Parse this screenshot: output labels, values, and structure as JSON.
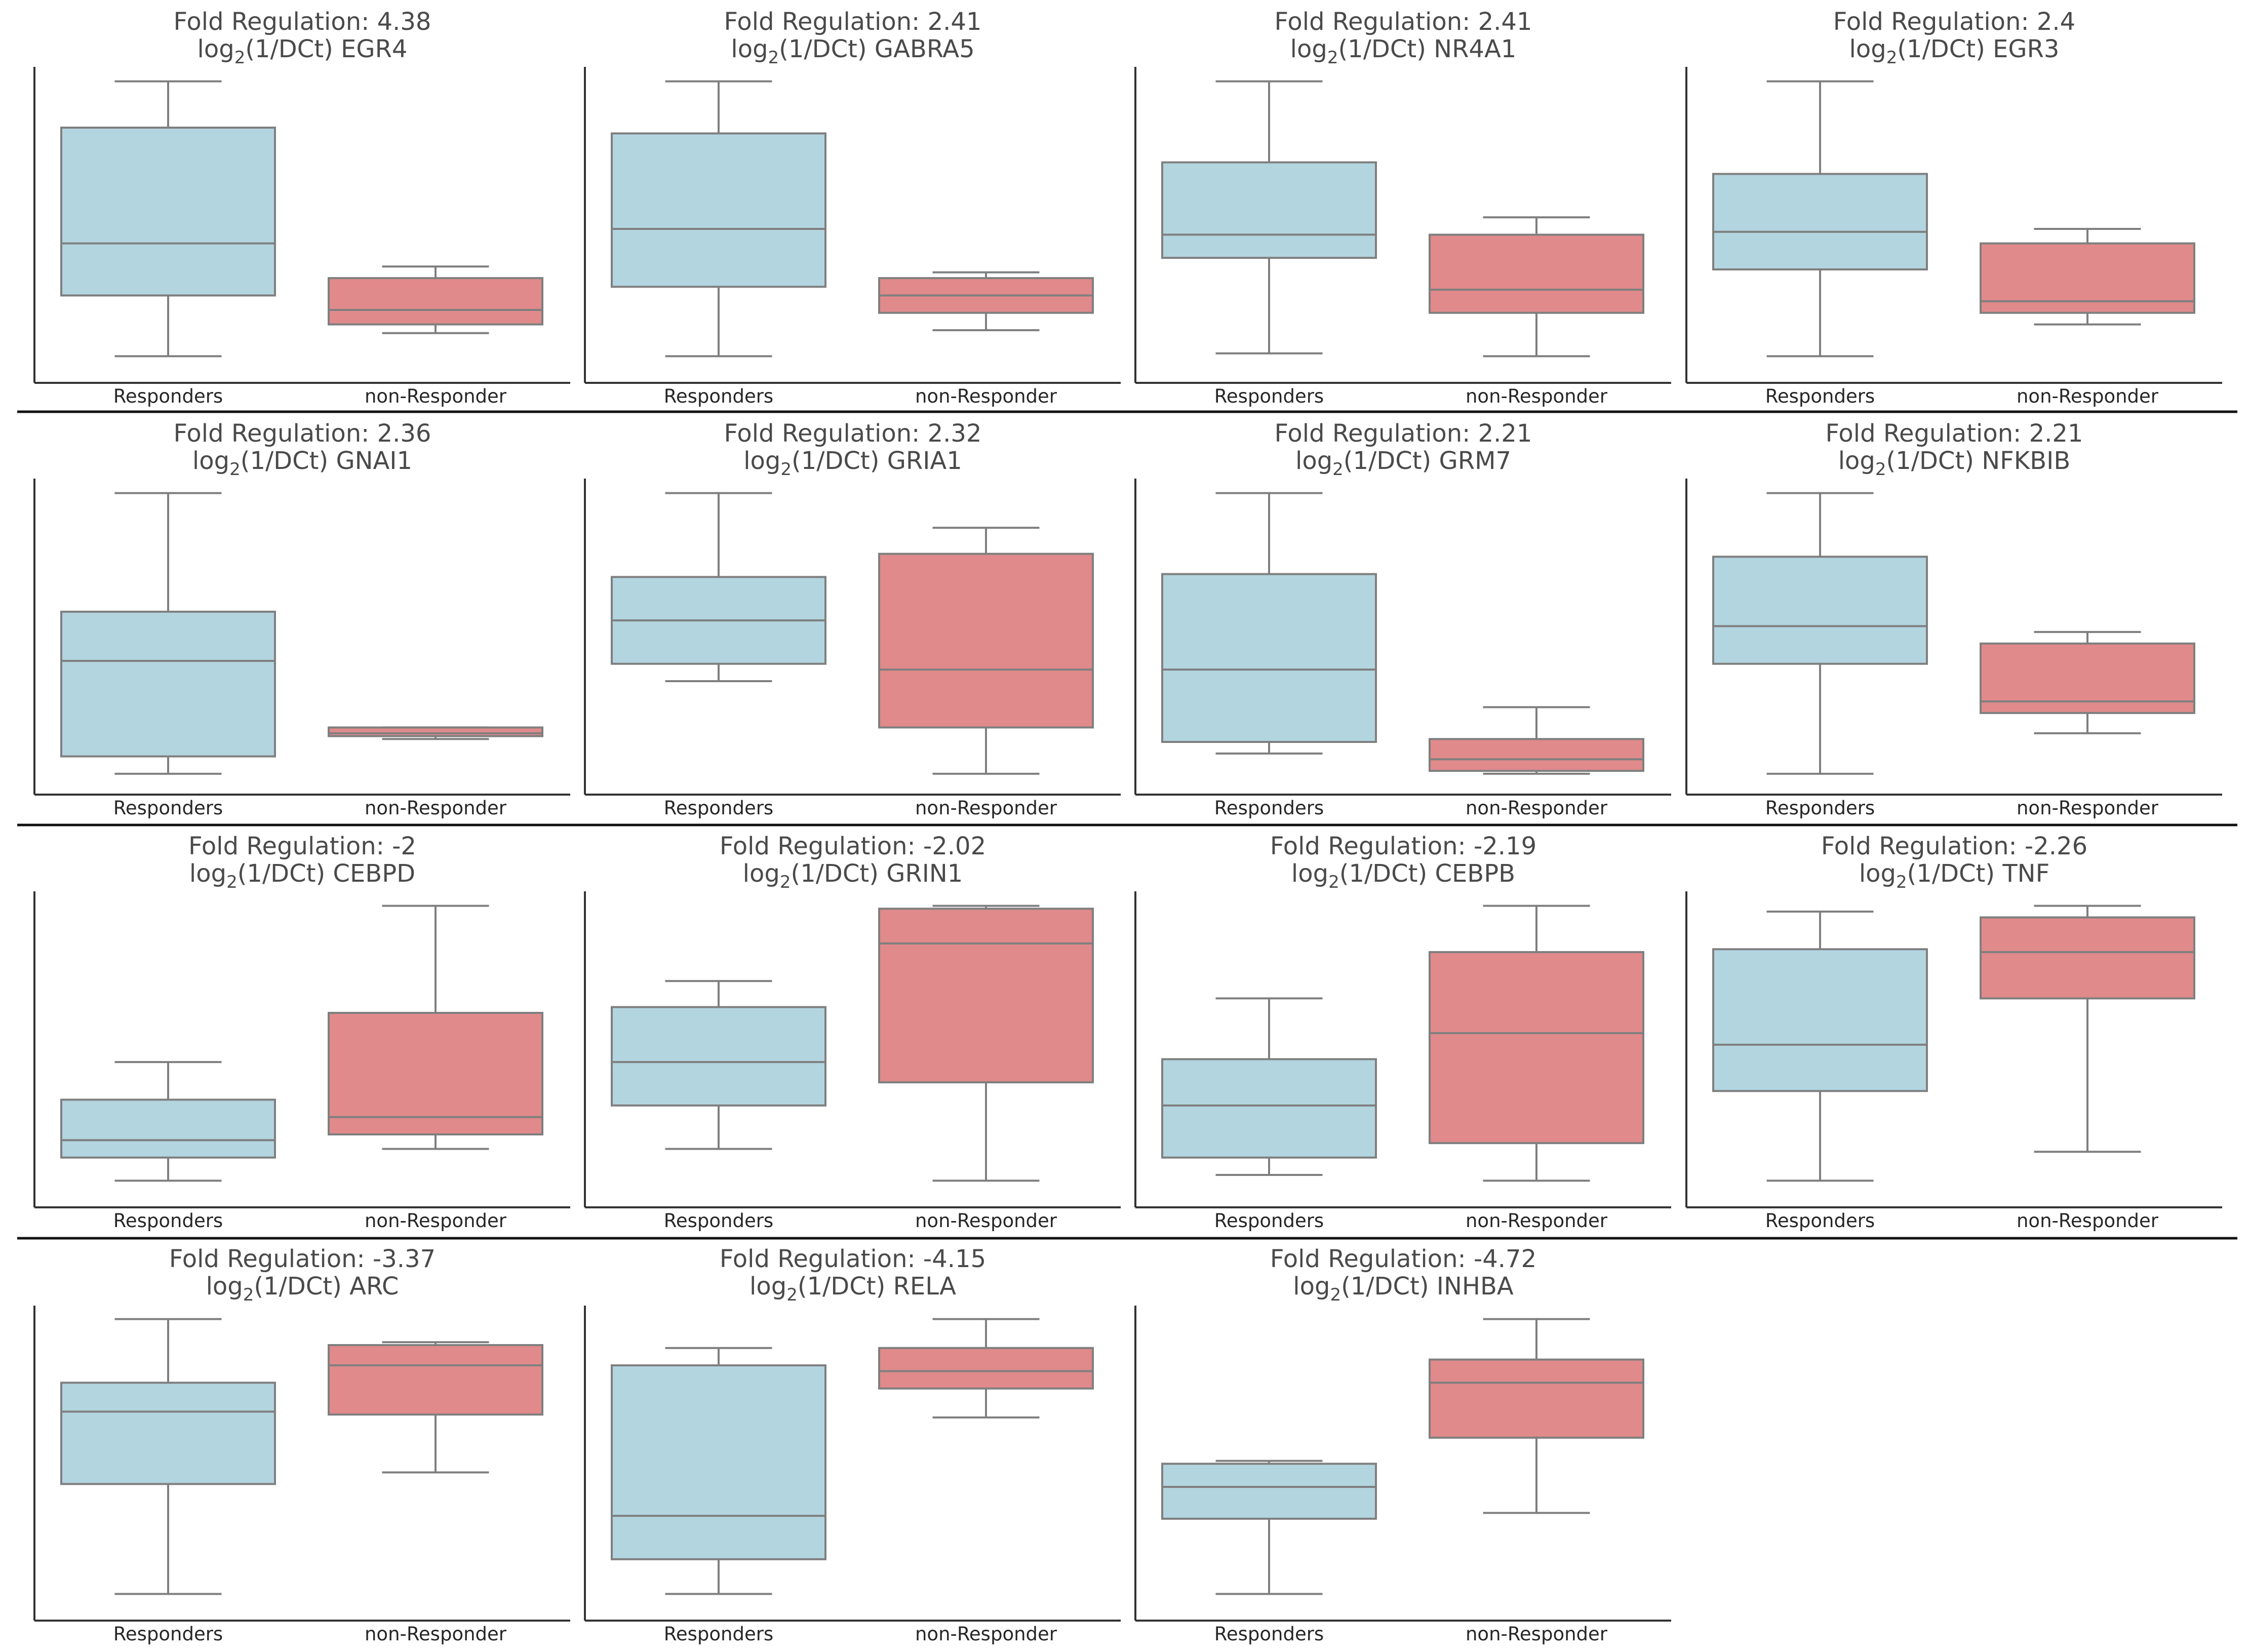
{
  "colors": {
    "responders": "#b3d5e0",
    "non_responder": "#e08a8b",
    "line": "#7f7f7f",
    "axis": "#333333",
    "separator": "#111111"
  },
  "chart_data": [
    {
      "type": "box",
      "title": "Fold Regulation: 4.38",
      "gene": "EGR4",
      "ylabel_prefix": "log",
      "ylabel_sub": "2",
      "ylabel_suffix": "(1/DCt)",
      "categories": [
        "Responders",
        "non-Responder"
      ],
      "boxes": [
        {
          "whislo": 0.05,
          "q1": 0.26,
          "med": 0.44,
          "q3": 0.84,
          "whishi": 1.0
        },
        {
          "whislo": 0.13,
          "q1": 0.16,
          "med": 0.21,
          "q3": 0.32,
          "whishi": 0.36
        }
      ],
      "ylim": [
        0,
        1.05
      ]
    },
    {
      "type": "box",
      "title": "Fold Regulation: 2.41",
      "gene": "GABRA5",
      "ylabel_prefix": "log",
      "ylabel_sub": "2",
      "ylabel_suffix": "(1/DCt)",
      "categories": [
        "Responders",
        "non-Responder"
      ],
      "boxes": [
        {
          "whislo": 0.05,
          "q1": 0.29,
          "med": 0.49,
          "q3": 0.82,
          "whishi": 1.0
        },
        {
          "whislo": 0.14,
          "q1": 0.2,
          "med": 0.26,
          "q3": 0.32,
          "whishi": 0.34
        }
      ],
      "ylim": [
        0,
        1.05
      ]
    },
    {
      "type": "box",
      "title": "Fold Regulation: 2.41",
      "gene": "NR4A1",
      "ylabel_prefix": "log",
      "ylabel_sub": "2",
      "ylabel_suffix": "(1/DCt)",
      "categories": [
        "Responders",
        "non-Responder"
      ],
      "boxes": [
        {
          "whislo": 0.06,
          "q1": 0.39,
          "med": 0.47,
          "q3": 0.72,
          "whishi": 1.0
        },
        {
          "whislo": 0.05,
          "q1": 0.2,
          "med": 0.28,
          "q3": 0.47,
          "whishi": 0.53
        }
      ],
      "ylim": [
        0,
        1.05
      ]
    },
    {
      "type": "box",
      "title": "Fold Regulation: 2.4",
      "gene": "EGR3",
      "ylabel_prefix": "log",
      "ylabel_sub": "2",
      "ylabel_suffix": "(1/DCt)",
      "categories": [
        "Responders",
        "non-Responder"
      ],
      "boxes": [
        {
          "whislo": 0.05,
          "q1": 0.35,
          "med": 0.48,
          "q3": 0.68,
          "whishi": 1.0
        },
        {
          "whislo": 0.16,
          "q1": 0.2,
          "med": 0.24,
          "q3": 0.44,
          "whishi": 0.49
        }
      ],
      "ylim": [
        0,
        1.05
      ]
    },
    {
      "type": "box",
      "title": "Fold Regulation: 2.36",
      "gene": "GNAI1",
      "ylabel_prefix": "log",
      "ylabel_sub": "2",
      "ylabel_suffix": "(1/DCt)",
      "categories": [
        "Responders",
        "non-Responder"
      ],
      "boxes": [
        {
          "whislo": 0.03,
          "q1": 0.09,
          "med": 0.42,
          "q3": 0.59,
          "whishi": 1.0
        },
        {
          "whislo": 0.15,
          "q1": 0.16,
          "med": 0.17,
          "q3": 0.19,
          "whishi": 0.19
        }
      ],
      "ylim": [
        0,
        1.05
      ]
    },
    {
      "type": "box",
      "title": "Fold Regulation: 2.32",
      "gene": "GRIA1",
      "ylabel_prefix": "log",
      "ylabel_sub": "2",
      "ylabel_suffix": "(1/DCt)",
      "categories": [
        "Responders",
        "non-Responder"
      ],
      "boxes": [
        {
          "whislo": 0.35,
          "q1": 0.41,
          "med": 0.56,
          "q3": 0.71,
          "whishi": 1.0
        },
        {
          "whislo": 0.03,
          "q1": 0.19,
          "med": 0.39,
          "q3": 0.79,
          "whishi": 0.88
        }
      ],
      "ylim": [
        0,
        1.05
      ]
    },
    {
      "type": "box",
      "title": "Fold Regulation: 2.21",
      "gene": "GRM7",
      "ylabel_prefix": "log",
      "ylabel_sub": "2",
      "ylabel_suffix": "(1/DCt)",
      "categories": [
        "Responders",
        "non-Responder"
      ],
      "boxes": [
        {
          "whislo": 0.1,
          "q1": 0.14,
          "med": 0.39,
          "q3": 0.72,
          "whishi": 1.0
        },
        {
          "whislo": 0.03,
          "q1": 0.04,
          "med": 0.08,
          "q3": 0.15,
          "whishi": 0.26
        }
      ],
      "ylim": [
        0,
        1.05
      ]
    },
    {
      "type": "box",
      "title": "Fold Regulation: 2.21",
      "gene": "NFKBIB",
      "ylabel_prefix": "log",
      "ylabel_sub": "2",
      "ylabel_suffix": "(1/DCt)",
      "categories": [
        "Responders",
        "non-Responder"
      ],
      "boxes": [
        {
          "whislo": 0.03,
          "q1": 0.41,
          "med": 0.54,
          "q3": 0.78,
          "whishi": 1.0
        },
        {
          "whislo": 0.17,
          "q1": 0.24,
          "med": 0.28,
          "q3": 0.48,
          "whishi": 0.52
        }
      ],
      "ylim": [
        0,
        1.05
      ]
    },
    {
      "type": "box",
      "title": "Fold Regulation: -2",
      "gene": "CEBPD",
      "ylabel_prefix": "log",
      "ylabel_sub": "2",
      "ylabel_suffix": "(1/DCt)",
      "categories": [
        "Responders",
        "non-Responder"
      ],
      "boxes": [
        {
          "whislo": 0.05,
          "q1": 0.13,
          "med": 0.19,
          "q3": 0.33,
          "whishi": 0.46
        },
        {
          "whislo": 0.16,
          "q1": 0.21,
          "med": 0.27,
          "q3": 0.63,
          "whishi": 1.0
        }
      ],
      "ylim": [
        0,
        1.05
      ]
    },
    {
      "type": "box",
      "title": "Fold Regulation: -2.02",
      "gene": "GRIN1",
      "ylabel_prefix": "log",
      "ylabel_sub": "2",
      "ylabel_suffix": "(1/DCt)",
      "categories": [
        "Responders",
        "non-Responder"
      ],
      "boxes": [
        {
          "whislo": 0.16,
          "q1": 0.31,
          "med": 0.46,
          "q3": 0.65,
          "whishi": 0.74
        },
        {
          "whislo": 0.05,
          "q1": 0.39,
          "med": 0.87,
          "q3": 0.99,
          "whishi": 1.0
        }
      ],
      "ylim": [
        0,
        1.05
      ]
    },
    {
      "type": "box",
      "title": "Fold Regulation: -2.19",
      "gene": "CEBPB",
      "ylabel_prefix": "log",
      "ylabel_sub": "2",
      "ylabel_suffix": "(1/DCt)",
      "categories": [
        "Responders",
        "non-Responder"
      ],
      "boxes": [
        {
          "whislo": 0.07,
          "q1": 0.13,
          "med": 0.31,
          "q3": 0.47,
          "whishi": 0.68
        },
        {
          "whislo": 0.05,
          "q1": 0.18,
          "med": 0.56,
          "q3": 0.84,
          "whishi": 1.0
        }
      ],
      "ylim": [
        0,
        1.05
      ]
    },
    {
      "type": "box",
      "title": "Fold Regulation: -2.26",
      "gene": "TNF",
      "ylabel_prefix": "log",
      "ylabel_sub": "2",
      "ylabel_suffix": "(1/DCt)",
      "categories": [
        "Responders",
        "non-Responder"
      ],
      "boxes": [
        {
          "whislo": 0.05,
          "q1": 0.36,
          "med": 0.52,
          "q3": 0.85,
          "whishi": 0.98
        },
        {
          "whislo": 0.15,
          "q1": 0.68,
          "med": 0.84,
          "q3": 0.96,
          "whishi": 1.0
        }
      ],
      "ylim": [
        0,
        1.05
      ]
    },
    {
      "type": "box",
      "title": "Fold Regulation: -3.37",
      "gene": "ARC",
      "ylabel_prefix": "log",
      "ylabel_sub": "2",
      "ylabel_suffix": "(1/DCt)",
      "categories": [
        "Responders",
        "non-Responder"
      ],
      "boxes": [
        {
          "whislo": 0.05,
          "q1": 0.43,
          "med": 0.68,
          "q3": 0.78,
          "whishi": 1.0
        },
        {
          "whislo": 0.47,
          "q1": 0.67,
          "med": 0.84,
          "q3": 0.91,
          "whishi": 0.92
        }
      ],
      "ylim": [
        0,
        1.05
      ]
    },
    {
      "type": "box",
      "title": "Fold Regulation: -4.15",
      "gene": "RELA",
      "ylabel_prefix": "log",
      "ylabel_sub": "2",
      "ylabel_suffix": "(1/DCt)",
      "categories": [
        "Responders",
        "non-Responder"
      ],
      "boxes": [
        {
          "whislo": 0.05,
          "q1": 0.17,
          "med": 0.32,
          "q3": 0.84,
          "whishi": 0.9
        },
        {
          "whislo": 0.66,
          "q1": 0.76,
          "med": 0.82,
          "q3": 0.9,
          "whishi": 1.0
        }
      ],
      "ylim": [
        0,
        1.05
      ]
    },
    {
      "type": "box",
      "title": "Fold Regulation: -4.72",
      "gene": "INHBA",
      "ylabel_prefix": "log",
      "ylabel_sub": "2",
      "ylabel_suffix": "(1/DCt)",
      "categories": [
        "Responders",
        "non-Responder"
      ],
      "boxes": [
        {
          "whislo": 0.05,
          "q1": 0.31,
          "med": 0.42,
          "q3": 0.5,
          "whishi": 0.51
        },
        {
          "whislo": 0.33,
          "q1": 0.59,
          "med": 0.78,
          "q3": 0.86,
          "whishi": 1.0
        }
      ],
      "ylim": [
        0,
        1.05
      ]
    }
  ]
}
